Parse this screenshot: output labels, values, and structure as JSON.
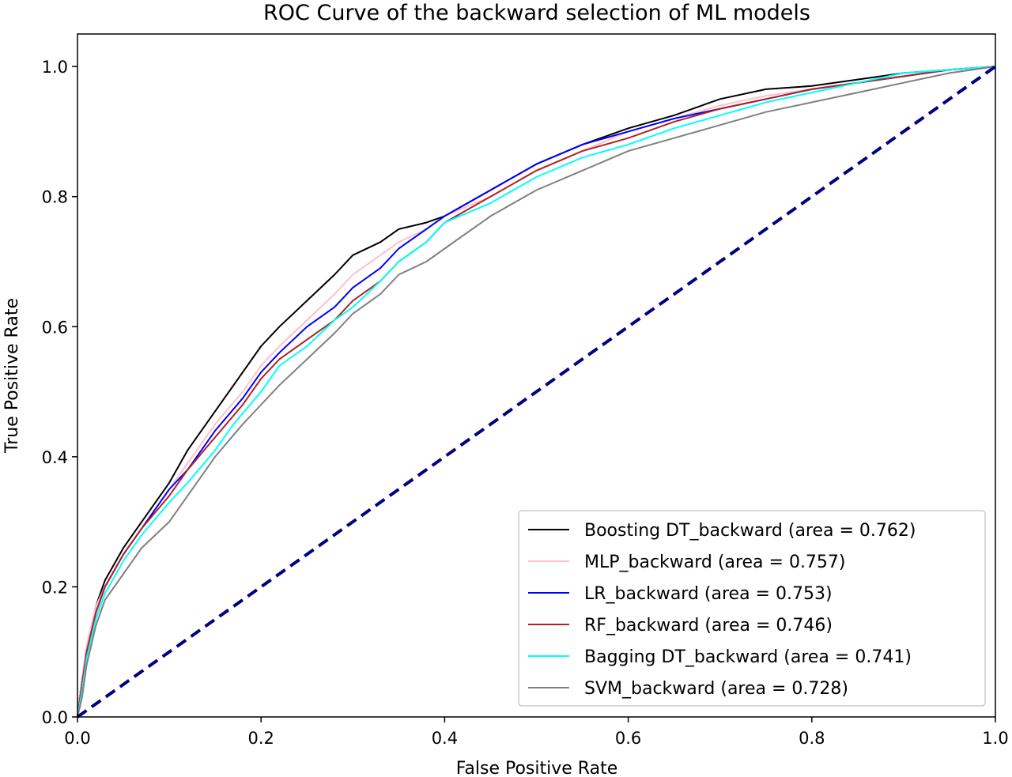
{
  "chart_data": {
    "type": "line",
    "title": "ROC Curve of the backward selection of ML models",
    "xlabel": "False Positive Rate",
    "ylabel": "True Positive Rate",
    "xlim": [
      0.0,
      1.0
    ],
    "ylim": [
      0.0,
      1.05
    ],
    "xticks": [
      "0.0",
      "0.2",
      "0.4",
      "0.6",
      "0.8",
      "1.0"
    ],
    "yticks": [
      "0.0",
      "0.2",
      "0.4",
      "0.6",
      "0.8",
      "1.0"
    ],
    "grid": false,
    "legend_position": "lower-right",
    "series": [
      {
        "name": "Boosting DT_backward (area = 0.762)",
        "color": "#000000",
        "x": [
          0,
          0.005,
          0.01,
          0.02,
          0.03,
          0.05,
          0.07,
          0.09,
          0.1,
          0.12,
          0.15,
          0.18,
          0.2,
          0.22,
          0.25,
          0.28,
          0.3,
          0.33,
          0.35,
          0.38,
          0.4,
          0.45,
          0.5,
          0.55,
          0.6,
          0.65,
          0.7,
          0.75,
          0.8,
          0.85,
          0.9,
          0.95,
          1.0
        ],
        "y": [
          0,
          0.06,
          0.1,
          0.17,
          0.21,
          0.26,
          0.3,
          0.34,
          0.36,
          0.41,
          0.47,
          0.53,
          0.57,
          0.6,
          0.64,
          0.68,
          0.71,
          0.73,
          0.75,
          0.76,
          0.77,
          0.81,
          0.85,
          0.88,
          0.905,
          0.925,
          0.95,
          0.965,
          0.97,
          0.98,
          0.99,
          0.995,
          1.0
        ]
      },
      {
        "name": "MLP_backward (area = 0.757)",
        "color": "#ffc0cb",
        "x": [
          0,
          0.005,
          0.01,
          0.02,
          0.03,
          0.05,
          0.07,
          0.1,
          0.12,
          0.15,
          0.18,
          0.2,
          0.22,
          0.25,
          0.28,
          0.3,
          0.33,
          0.35,
          0.38,
          0.4,
          0.45,
          0.5,
          0.55,
          0.6,
          0.65,
          0.7,
          0.75,
          0.8,
          0.85,
          0.9,
          0.95,
          1.0
        ],
        "y": [
          0,
          0.06,
          0.11,
          0.17,
          0.2,
          0.25,
          0.29,
          0.35,
          0.39,
          0.45,
          0.5,
          0.54,
          0.57,
          0.61,
          0.65,
          0.68,
          0.71,
          0.73,
          0.75,
          0.77,
          0.8,
          0.84,
          0.87,
          0.9,
          0.92,
          0.94,
          0.955,
          0.965,
          0.975,
          0.985,
          0.995,
          1.0
        ]
      },
      {
        "name": "LR_backward (area = 0.753)",
        "color": "#0000ff",
        "x": [
          0,
          0.005,
          0.01,
          0.02,
          0.03,
          0.05,
          0.07,
          0.1,
          0.12,
          0.15,
          0.18,
          0.2,
          0.22,
          0.25,
          0.28,
          0.3,
          0.33,
          0.35,
          0.38,
          0.4,
          0.45,
          0.5,
          0.55,
          0.6,
          0.65,
          0.7,
          0.75,
          0.8,
          0.85,
          0.9,
          0.95,
          1.0
        ],
        "y": [
          0,
          0.05,
          0.1,
          0.16,
          0.2,
          0.25,
          0.29,
          0.35,
          0.38,
          0.44,
          0.49,
          0.53,
          0.56,
          0.6,
          0.63,
          0.66,
          0.69,
          0.72,
          0.75,
          0.77,
          0.81,
          0.85,
          0.88,
          0.9,
          0.92,
          0.935,
          0.95,
          0.965,
          0.975,
          0.985,
          0.995,
          1.0
        ]
      },
      {
        "name": "RF_backward (area = 0.746)",
        "color": "#b22222",
        "x": [
          0,
          0.005,
          0.01,
          0.02,
          0.03,
          0.05,
          0.07,
          0.1,
          0.12,
          0.15,
          0.18,
          0.2,
          0.22,
          0.25,
          0.28,
          0.3,
          0.33,
          0.35,
          0.38,
          0.4,
          0.45,
          0.5,
          0.55,
          0.6,
          0.65,
          0.7,
          0.75,
          0.8,
          0.85,
          0.9,
          0.95,
          1.0
        ],
        "y": [
          0,
          0.05,
          0.1,
          0.16,
          0.2,
          0.25,
          0.29,
          0.34,
          0.38,
          0.43,
          0.48,
          0.52,
          0.55,
          0.58,
          0.61,
          0.64,
          0.67,
          0.7,
          0.73,
          0.76,
          0.8,
          0.84,
          0.87,
          0.89,
          0.915,
          0.935,
          0.95,
          0.965,
          0.975,
          0.985,
          0.995,
          1.0
        ]
      },
      {
        "name": "Bagging DT_backward (area = 0.741)",
        "color": "#00ffff",
        "x": [
          0,
          0.005,
          0.01,
          0.02,
          0.03,
          0.05,
          0.07,
          0.1,
          0.12,
          0.15,
          0.17,
          0.2,
          0.22,
          0.25,
          0.28,
          0.3,
          0.33,
          0.35,
          0.38,
          0.4,
          0.45,
          0.5,
          0.55,
          0.6,
          0.65,
          0.7,
          0.75,
          0.8,
          0.85,
          0.9,
          0.95,
          1.0
        ],
        "y": [
          0,
          0.04,
          0.09,
          0.15,
          0.19,
          0.24,
          0.28,
          0.33,
          0.36,
          0.41,
          0.45,
          0.5,
          0.54,
          0.57,
          0.61,
          0.63,
          0.67,
          0.7,
          0.73,
          0.76,
          0.79,
          0.83,
          0.86,
          0.88,
          0.905,
          0.925,
          0.945,
          0.96,
          0.975,
          0.99,
          0.995,
          1.0
        ]
      },
      {
        "name": "SVM_backward (area = 0.728)",
        "color": "#808080",
        "x": [
          0,
          0.005,
          0.01,
          0.02,
          0.03,
          0.05,
          0.07,
          0.1,
          0.12,
          0.15,
          0.18,
          0.2,
          0.22,
          0.25,
          0.28,
          0.3,
          0.33,
          0.35,
          0.38,
          0.4,
          0.45,
          0.5,
          0.55,
          0.6,
          0.65,
          0.7,
          0.75,
          0.8,
          0.85,
          0.9,
          0.95,
          1.0
        ],
        "y": [
          0,
          0.03,
          0.08,
          0.14,
          0.18,
          0.22,
          0.26,
          0.3,
          0.34,
          0.4,
          0.45,
          0.48,
          0.51,
          0.55,
          0.59,
          0.62,
          0.65,
          0.68,
          0.7,
          0.72,
          0.77,
          0.81,
          0.84,
          0.87,
          0.89,
          0.91,
          0.93,
          0.945,
          0.96,
          0.975,
          0.99,
          1.0
        ]
      }
    ],
    "reference_line": {
      "x": [
        0,
        1
      ],
      "y": [
        0,
        1
      ],
      "color": "#000080",
      "style": "dashed"
    }
  }
}
